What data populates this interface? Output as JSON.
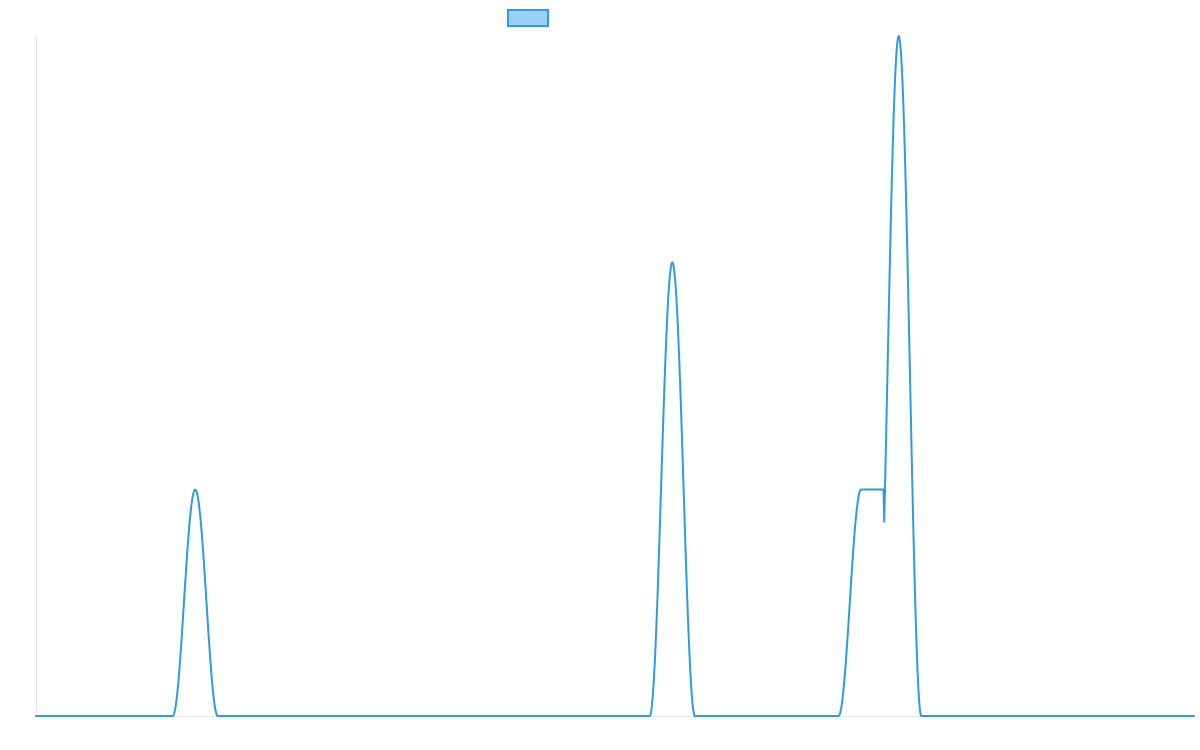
{
  "chart_data": {
    "type": "line",
    "title": "",
    "xlabel": "",
    "ylabel": "",
    "grid": false,
    "legend": {
      "placement": "top-center",
      "entries": [
        ""
      ]
    },
    "xlim": [
      0,
      1
    ],
    "ylim": [
      0,
      1
    ],
    "colors": {
      "line": "#2f9ae0",
      "legend_fill": "#99d1f6",
      "legend_stroke": "#2f9ae0",
      "axis": "#e6e6e6"
    },
    "peaks": [
      {
        "center": 0.1375,
        "height": 0.333,
        "width": 0.0195
      },
      {
        "center": 0.5495,
        "height": 0.667,
        "width": 0.0195
      },
      {
        "center": 0.7125,
        "height": 0.333,
        "width": 0.0195,
        "shoulder": true
      },
      {
        "center": 0.745,
        "height": 1.0,
        "width": 0.0195
      }
    ]
  }
}
